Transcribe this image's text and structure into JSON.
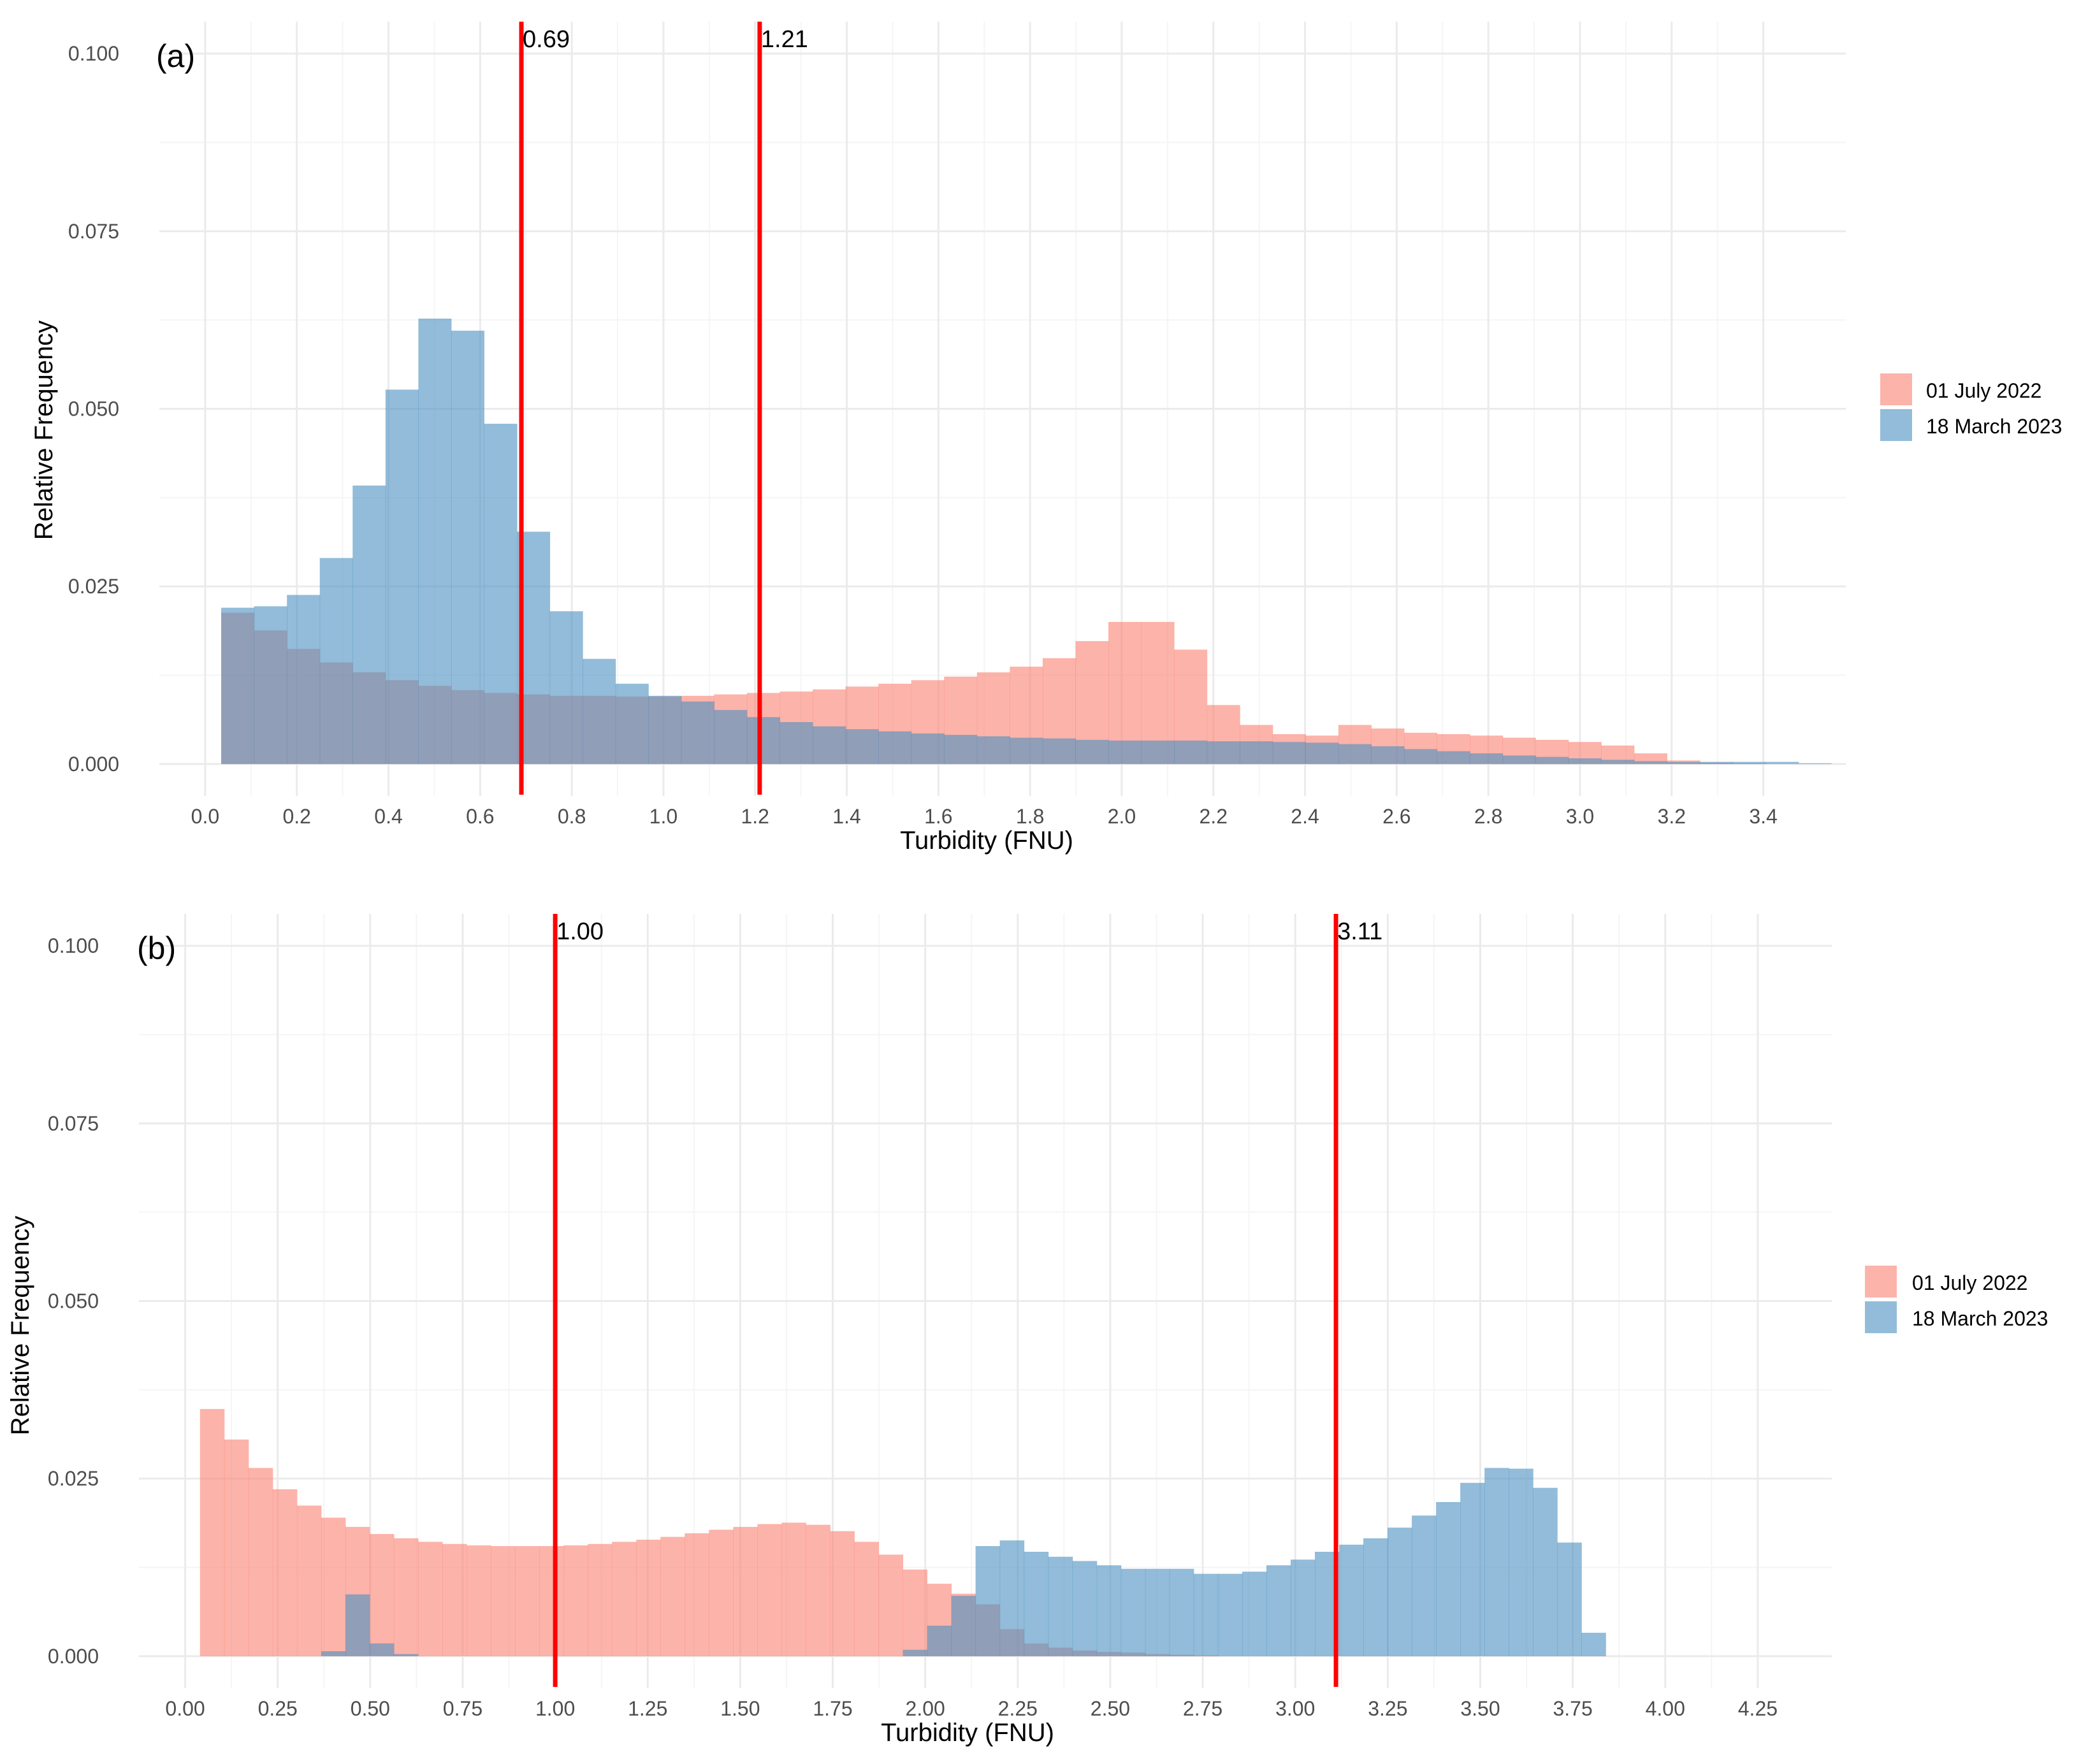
{
  "colors": {
    "series_july": "#FA8072",
    "series_march": "#4A90C0",
    "vline": "#FF0000",
    "grid_major": "#EBEBEB",
    "grid_minor": "#F5F5F5"
  },
  "chart_data": [
    {
      "type": "histogram",
      "panel_label": "(a)",
      "xlabel": "Turbidity (FNU)",
      "ylabel": "Relative Frequency",
      "xlim": [
        -0.1,
        3.58
      ],
      "ylim": [
        -0.0045,
        0.1045
      ],
      "x_ticks": [
        0.0,
        0.2,
        0.4,
        0.6,
        0.8,
        1.0,
        1.2,
        1.4,
        1.6,
        1.8,
        2.0,
        2.2,
        2.4,
        2.6,
        2.8,
        3.0,
        3.2,
        3.4
      ],
      "x_tick_labels": [
        "0.0",
        "0.2",
        "0.4",
        "0.6",
        "0.8",
        "1.0",
        "1.2",
        "1.4",
        "1.6",
        "1.8",
        "2.0",
        "2.2",
        "2.4",
        "2.6",
        "2.8",
        "3.0",
        "3.2",
        "3.4"
      ],
      "y_ticks": [
        0.0,
        0.025,
        0.05,
        0.075,
        0.1
      ],
      "y_tick_labels": [
        "0.000",
        "0.025",
        "0.050",
        "0.075",
        "0.100"
      ],
      "grid": true,
      "legend_position": "right",
      "bin_start": 0.035,
      "bin_width": 0.0717,
      "series": [
        {
          "name": "01 July 2022",
          "color": "#FA8072",
          "values": [
            0.0213,
            0.0188,
            0.0162,
            0.0143,
            0.0129,
            0.0118,
            0.011,
            0.0104,
            0.01,
            0.0098,
            0.0096,
            0.0096,
            0.0095,
            0.0095,
            0.0096,
            0.0098,
            0.01,
            0.0102,
            0.0105,
            0.0109,
            0.0113,
            0.0118,
            0.0123,
            0.0129,
            0.0137,
            0.0149,
            0.0173,
            0.02,
            0.02,
            0.0161,
            0.0083,
            0.0055,
            0.0042,
            0.004,
            0.0055,
            0.005,
            0.0044,
            0.0042,
            0.004,
            0.0037,
            0.0034,
            0.0031,
            0.0026,
            0.0015,
            0.0005,
            0.0002,
            0.0001,
            0.0
          ]
        },
        {
          "name": "18 March 2023",
          "color": "#4A90C0",
          "values": [
            0.022,
            0.0222,
            0.0238,
            0.029,
            0.0392,
            0.0527,
            0.0627,
            0.061,
            0.0479,
            0.0327,
            0.0215,
            0.0148,
            0.0113,
            0.0096,
            0.0088,
            0.0076,
            0.0066,
            0.0059,
            0.0053,
            0.0049,
            0.0046,
            0.0043,
            0.0041,
            0.0039,
            0.0037,
            0.0036,
            0.0034,
            0.0033,
            0.0033,
            0.0033,
            0.0032,
            0.0032,
            0.0031,
            0.003,
            0.0028,
            0.0025,
            0.0021,
            0.0018,
            0.0015,
            0.0012,
            0.001,
            0.0008,
            0.0006,
            0.0004,
            0.0003,
            0.0003,
            0.0003,
            0.0003,
            0.0001
          ]
        }
      ],
      "vlines": [
        {
          "x": 0.69,
          "label": "0.69"
        },
        {
          "x": 1.21,
          "label": "1.21"
        }
      ]
    },
    {
      "type": "histogram",
      "panel_label": "(b)",
      "xlabel": "Turbidity (FNU)",
      "ylabel": "Relative Frequency",
      "xlim": [
        -0.125,
        4.45
      ],
      "ylim": [
        -0.0045,
        0.1045
      ],
      "x_ticks": [
        0.0,
        0.25,
        0.5,
        0.75,
        1.0,
        1.25,
        1.5,
        1.75,
        2.0,
        2.25,
        2.5,
        2.75,
        3.0,
        3.25,
        3.5,
        3.75,
        4.0,
        4.25
      ],
      "x_tick_labels": [
        "0.00",
        "0.25",
        "0.50",
        "0.75",
        "1.00",
        "1.25",
        "1.50",
        "1.75",
        "2.00",
        "2.25",
        "2.50",
        "2.75",
        "3.00",
        "3.25",
        "3.50",
        "3.75",
        "4.00",
        "4.25"
      ],
      "y_ticks": [
        0.0,
        0.025,
        0.05,
        0.075,
        0.1
      ],
      "y_tick_labels": [
        "0.000",
        "0.025",
        "0.050",
        "0.075",
        "0.100"
      ],
      "grid": true,
      "legend_position": "right",
      "bin_start": 0.04,
      "bin_width": 0.0655,
      "series": [
        {
          "name": "01 July 2022",
          "color": "#FA8072",
          "values": [
            0.0348,
            0.0305,
            0.0265,
            0.0235,
            0.0212,
            0.0195,
            0.0182,
            0.0172,
            0.0166,
            0.0161,
            0.0158,
            0.0156,
            0.0155,
            0.0155,
            0.0155,
            0.0156,
            0.0158,
            0.0161,
            0.0164,
            0.0168,
            0.0173,
            0.0178,
            0.0182,
            0.0186,
            0.0188,
            0.0185,
            0.0176,
            0.0161,
            0.0143,
            0.0122,
            0.0102,
            0.0088,
            0.0073,
            0.0038,
            0.0018,
            0.0012,
            0.0008,
            0.0006,
            0.0005,
            0.0003,
            0.0002,
            0.0001
          ]
        },
        {
          "name": "18 March 2023",
          "color": "#4A90C0",
          "values": [
            0,
            0,
            0,
            0,
            0,
            0.0007,
            0.0087,
            0.0018,
            0.0003,
            0,
            0,
            0,
            0,
            0,
            0,
            0,
            0,
            0,
            0,
            0,
            0,
            0,
            0,
            0,
            0,
            0,
            0,
            0,
            0,
            0.0009,
            0.0043,
            0.0085,
            0.0155,
            0.0163,
            0.0147,
            0.014,
            0.0134,
            0.0128,
            0.0123,
            0.0123,
            0.0123,
            0.0116,
            0.0116,
            0.0119,
            0.0128,
            0.0136,
            0.0147,
            0.0157,
            0.0166,
            0.0181,
            0.0198,
            0.0217,
            0.0244,
            0.0265,
            0.0264,
            0.0237,
            0.016,
            0.0033
          ]
        }
      ],
      "vlines": [
        {
          "x": 1.0,
          "label": "1.00"
        },
        {
          "x": 3.11,
          "label": "3.11"
        }
      ]
    }
  ]
}
